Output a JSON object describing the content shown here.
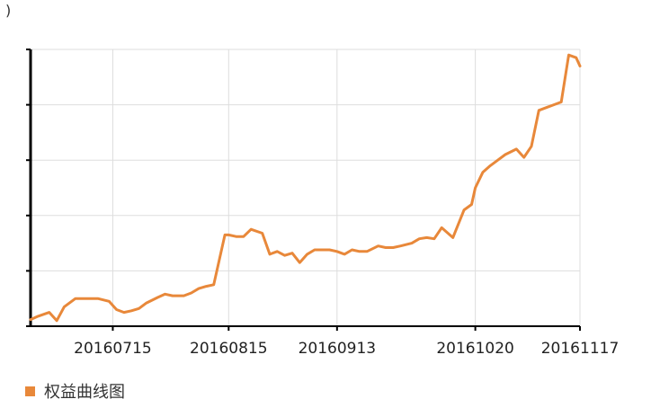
{
  "chart_data": {
    "type": "line",
    "title": "",
    "ylabel": ")",
    "xlabel": "",
    "x_ticks": [
      "20160715",
      "20160815",
      "20160913",
      "20161020",
      "20161117"
    ],
    "ylim": [
      0,
      5
    ],
    "y_tick_values": [
      0,
      1,
      2,
      3,
      4,
      5
    ],
    "grid": true,
    "legend": "bottom-left",
    "series": [
      {
        "name": "权益曲线图",
        "color": "#e8883a",
        "x": [
          "20160623",
          "20160625",
          "20160628",
          "20160630",
          "20160702",
          "20160705",
          "20160707",
          "20160709",
          "20160711",
          "20160714",
          "20160716",
          "20160718",
          "20160720",
          "20160722",
          "20160724",
          "20160727",
          "20160729",
          "20160731",
          "20160803",
          "20160805",
          "20160807",
          "20160809",
          "20160811",
          "20160814",
          "20160815",
          "20160817",
          "20160819",
          "20160821",
          "20160824",
          "20160826",
          "20160828",
          "20160830",
          "20160901",
          "20160903",
          "20160905",
          "20160907",
          "20160909",
          "20160911",
          "20160913",
          "20160915",
          "20160917",
          "20160919",
          "20160921",
          "20160924",
          "20160926",
          "20160928",
          "20160930",
          "20161003",
          "20161005",
          "20161007",
          "20161009",
          "20161011",
          "20161014",
          "20161017",
          "20161019",
          "20161020",
          "20161022",
          "20161024",
          "20161026",
          "20161028",
          "20161031",
          "20161102",
          "20161104",
          "20161106",
          "20161108",
          "20161110",
          "20161112",
          "20161114",
          "20161116",
          "20161117"
        ],
        "y": [
          0.12,
          0.18,
          0.25,
          0.1,
          0.35,
          0.5,
          0.5,
          0.5,
          0.5,
          0.45,
          0.3,
          0.25,
          0.28,
          0.32,
          0.42,
          0.52,
          0.58,
          0.55,
          0.55,
          0.6,
          0.68,
          0.72,
          0.75,
          1.65,
          1.65,
          1.62,
          1.62,
          1.75,
          1.68,
          1.3,
          1.35,
          1.28,
          1.32,
          1.15,
          1.3,
          1.38,
          1.38,
          1.38,
          1.35,
          1.3,
          1.38,
          1.35,
          1.35,
          1.45,
          1.42,
          1.42,
          1.45,
          1.5,
          1.58,
          1.6,
          1.58,
          1.78,
          1.6,
          2.1,
          2.2,
          2.5,
          2.78,
          2.9,
          3.0,
          3.1,
          3.2,
          3.05,
          3.25,
          3.9,
          3.95,
          4.0,
          4.05,
          4.9,
          4.85,
          4.7
        ]
      }
    ]
  }
}
